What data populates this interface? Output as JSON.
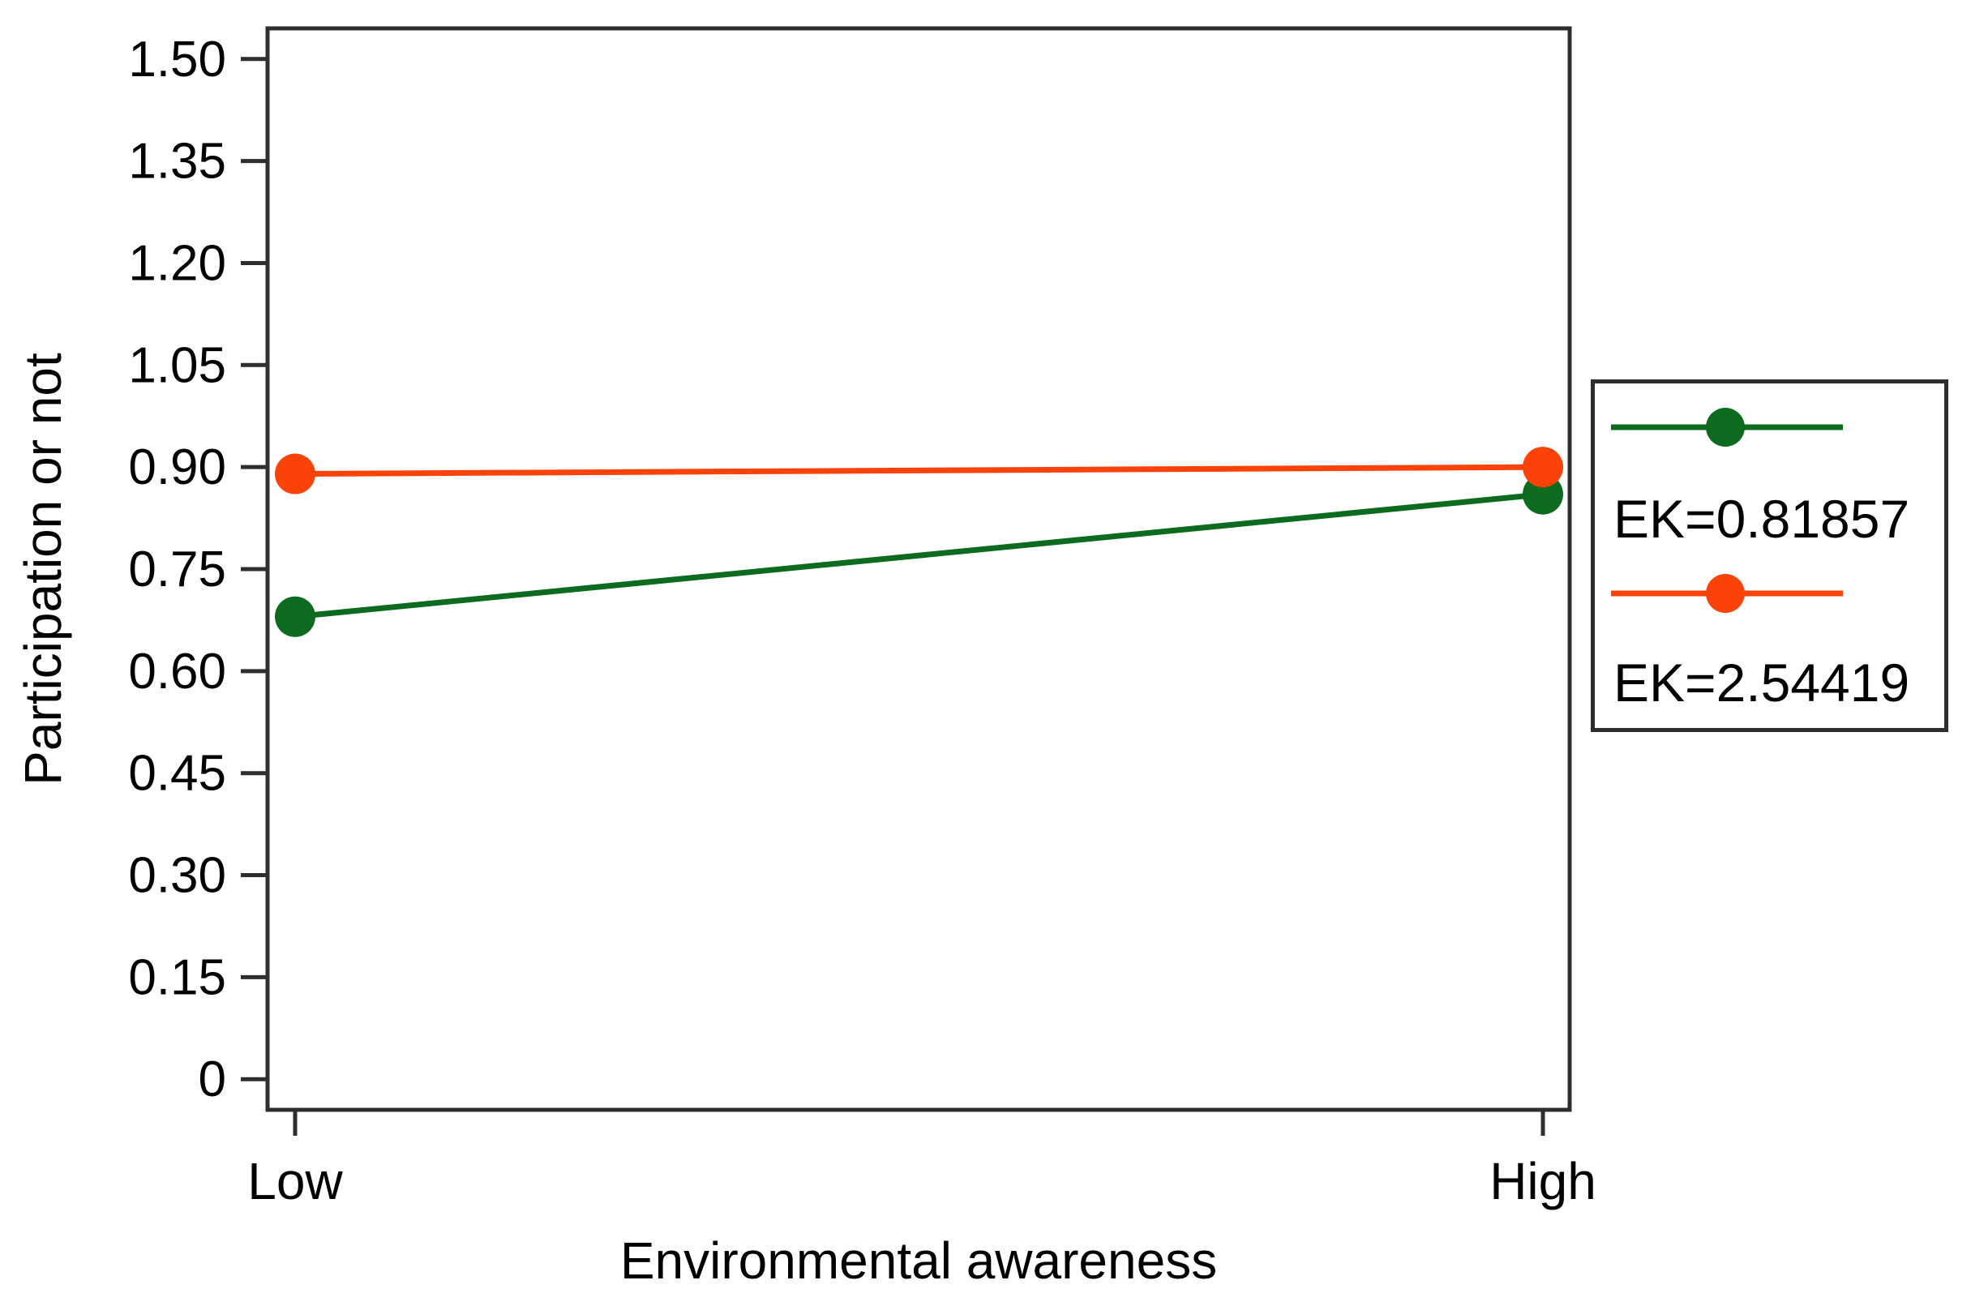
{
  "figure": {
    "background": "#ffffff"
  },
  "colors": {
    "axis_line": "#2e2e2e",
    "text": "#000000",
    "series_green": "#0d6b20",
    "series_orange": "#fb4208"
  },
  "chart_data": {
    "type": "line",
    "title": "",
    "xlabel": "Environmental awareness",
    "ylabel": "Participation or not",
    "categories": [
      "Low",
      "High"
    ],
    "series": [
      {
        "id": "ek-0-81857",
        "name": "EK=0.81857",
        "color": "#0d6b20",
        "marker": "circle",
        "values": [
          0.68,
          0.86
        ]
      },
      {
        "id": "ek-2-54419",
        "name": "EK=2.54419",
        "color": "#fb4208",
        "marker": "circle",
        "values": [
          0.89,
          0.9
        ]
      }
    ],
    "yticks": [
      0,
      0.15,
      0.3,
      0.45,
      0.6,
      0.75,
      0.9,
      1.05,
      1.2,
      1.35,
      1.5
    ],
    "ytick_labels": [
      "0",
      "0.15",
      "0.30",
      "0.45",
      "0.60",
      "0.75",
      "0.90",
      "1.05",
      "1.20",
      "1.35",
      "1.50"
    ],
    "ylim": [
      -0.045,
      1.545
    ],
    "grid": false,
    "legend_position": "right"
  }
}
